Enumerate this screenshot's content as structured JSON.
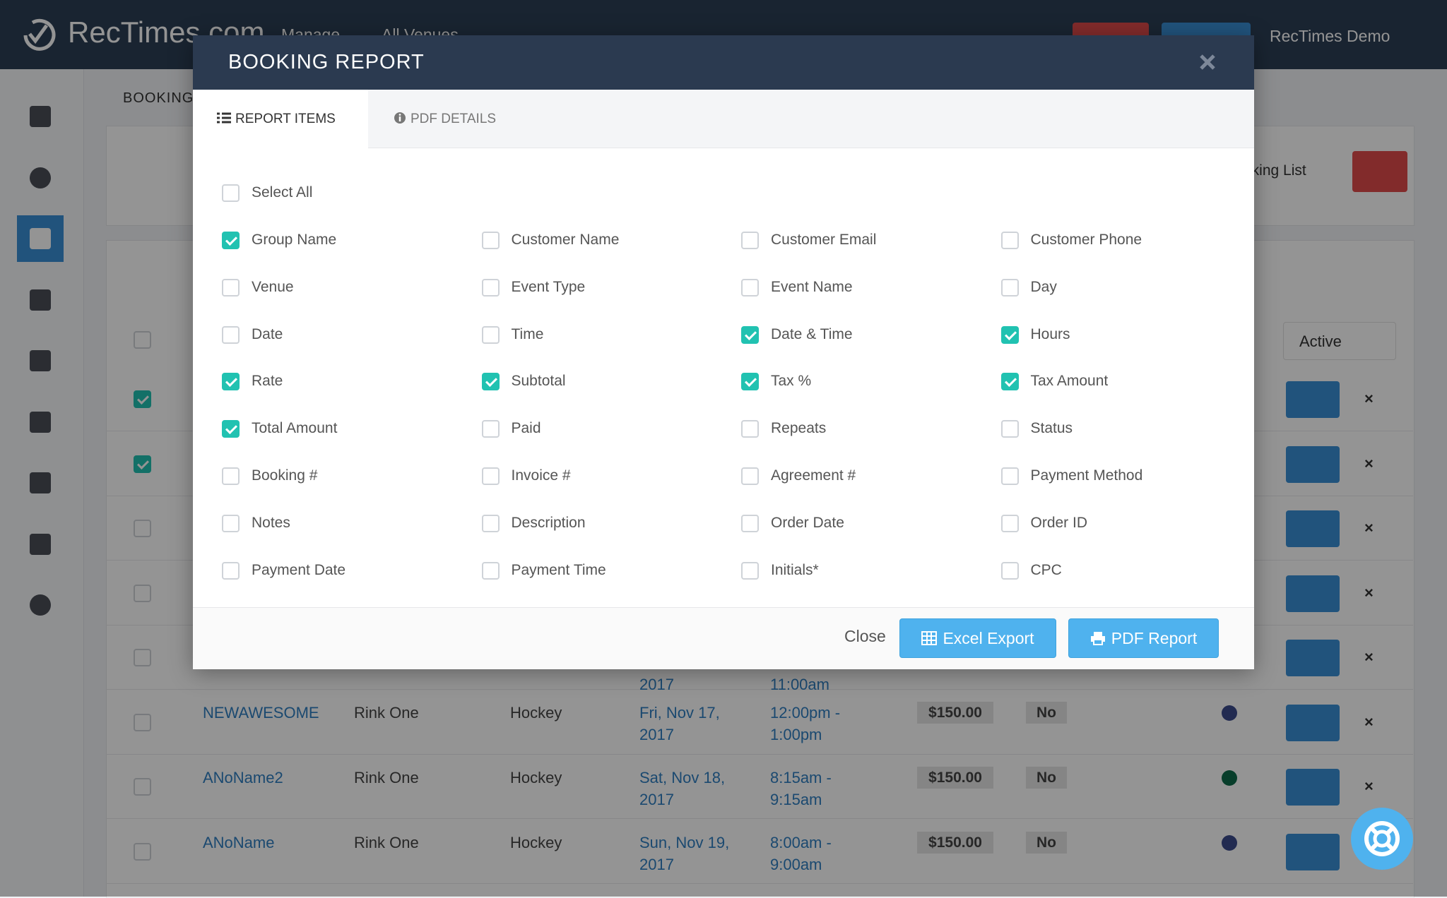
{
  "navbar": {
    "brand": "RecTimes.com",
    "menus": [
      "Manage",
      "All Venues"
    ],
    "user": "RecTimes Demo"
  },
  "page": {
    "breadcrumb": "BOOKING",
    "list_button": "oking List",
    "status_filter": "Active",
    "row_checks": [
      false,
      true,
      true,
      false,
      false,
      false,
      false,
      false,
      false
    ],
    "rows": [
      {
        "date": "2017",
        "time": "11:00am"
      },
      {
        "name": "NEWAWESOME",
        "venue": "Rink One",
        "event": "Hockey",
        "date": "Fri, Nov 17, 2017",
        "time": "12:00pm - 1:00pm",
        "price": "$150.00",
        "paid": "No",
        "dot": "#3b4a8c"
      },
      {
        "name": "ANoName2",
        "venue": "Rink One",
        "event": "Hockey",
        "date": "Sat, Nov 18, 2017",
        "time": "8:15am - 9:15am",
        "price": "$150.00",
        "paid": "No",
        "dot": "#0f6b4a"
      },
      {
        "name": "ANoName",
        "venue": "Rink One",
        "event": "Hockey",
        "date": "Sun, Nov 19, 2017",
        "time": "8:00am - 9:00am",
        "price": "$150.00",
        "paid": "No",
        "dot": "#3b4a8c"
      }
    ]
  },
  "modal": {
    "title": "BOOKING REPORT",
    "tabs": [
      "REPORT ITEMS",
      "PDF DETAILS"
    ],
    "select_all": {
      "label": "Select All",
      "checked": false
    },
    "items": [
      {
        "label": "Group Name",
        "checked": true
      },
      {
        "label": "Customer Name",
        "checked": false
      },
      {
        "label": "Customer Email",
        "checked": false
      },
      {
        "label": "Customer Phone",
        "checked": false
      },
      {
        "label": "Venue",
        "checked": false
      },
      {
        "label": "Event Type",
        "checked": false
      },
      {
        "label": "Event Name",
        "checked": false
      },
      {
        "label": "Day",
        "checked": false
      },
      {
        "label": "Date",
        "checked": false
      },
      {
        "label": "Time",
        "checked": false
      },
      {
        "label": "Date & Time",
        "checked": true
      },
      {
        "label": "Hours",
        "checked": true
      },
      {
        "label": "Rate",
        "checked": true
      },
      {
        "label": "Subtotal",
        "checked": true
      },
      {
        "label": "Tax %",
        "checked": true
      },
      {
        "label": "Tax Amount",
        "checked": true
      },
      {
        "label": "Total Amount",
        "checked": true
      },
      {
        "label": "Paid",
        "checked": false
      },
      {
        "label": "Repeats",
        "checked": false
      },
      {
        "label": "Status",
        "checked": false
      },
      {
        "label": "Booking #",
        "checked": false
      },
      {
        "label": "Invoice #",
        "checked": false
      },
      {
        "label": "Agreement #",
        "checked": false
      },
      {
        "label": "Payment Method",
        "checked": false
      },
      {
        "label": "Notes",
        "checked": false
      },
      {
        "label": "Description",
        "checked": false
      },
      {
        "label": "Order Date",
        "checked": false
      },
      {
        "label": "Order ID",
        "checked": false
      },
      {
        "label": "Payment Date",
        "checked": false
      },
      {
        "label": "Payment Time",
        "checked": false
      },
      {
        "label": "Initials*",
        "checked": false
      },
      {
        "label": "CPC",
        "checked": false
      }
    ],
    "buttons": {
      "close": "Close",
      "excel": "Excel Export",
      "pdf": "PDF Report"
    }
  }
}
